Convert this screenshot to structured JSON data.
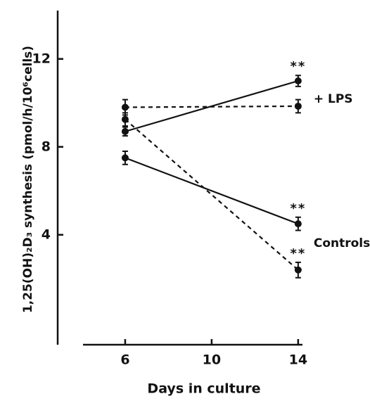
{
  "chart_data": {
    "type": "line",
    "ylabel": "1,25(OH)₂D₃  synthesis  (pmol/h/10⁶cells)",
    "xlabel": "Days   in   culture",
    "x": [
      6,
      14
    ],
    "xlim": [
      4.05,
      14.2
    ],
    "xticks": [
      6,
      10,
      14
    ],
    "ylim": [
      -1,
      14.2
    ],
    "yticks": [
      4,
      8,
      12
    ],
    "series": [
      {
        "style": "solid",
        "color": "#111111",
        "values": [
          8.7,
          11.0
        ],
        "errors": [
          0.2,
          0.25
        ],
        "significance": [
          null,
          "**"
        ]
      },
      {
        "style": "dashed",
        "color": "#111111",
        "values": [
          9.8,
          9.85
        ],
        "errors": [
          0.35,
          0.3
        ],
        "significance": [
          null,
          null
        ]
      },
      {
        "style": "solid",
        "color": "#111111",
        "values": [
          7.5,
          4.5
        ],
        "errors": [
          0.3,
          0.3
        ],
        "significance": [
          null,
          "**"
        ]
      },
      {
        "style": "dashed",
        "color": "#111111",
        "values": [
          9.25,
          2.4
        ],
        "errors": [
          0.3,
          0.35
        ],
        "significance": [
          null,
          "**"
        ]
      }
    ],
    "group_labels": [
      {
        "text": "+ LPS",
        "series": 1
      },
      {
        "text": "Controls",
        "series": 3
      }
    ]
  }
}
